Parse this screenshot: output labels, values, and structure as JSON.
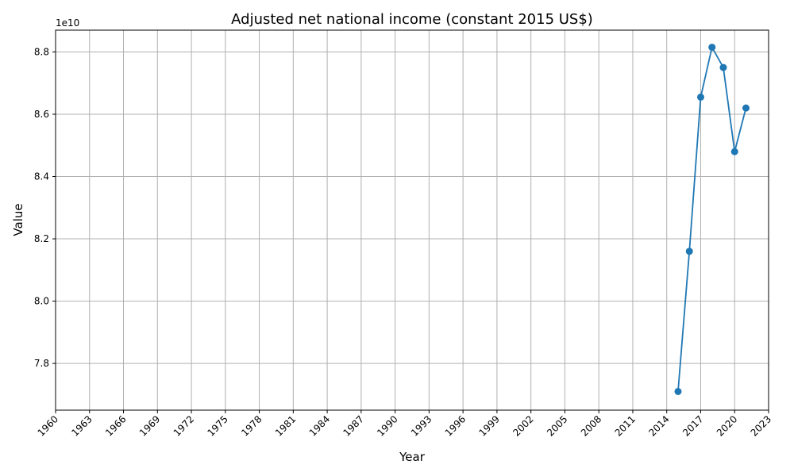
{
  "chart_data": {
    "type": "line",
    "title": "Adjusted net national income (constant 2015 US$)",
    "xlabel": "Year",
    "ylabel": "Value",
    "y_offset_text": "1e10",
    "xlim": [
      1960,
      2023
    ],
    "ylim": [
      76500000000.0,
      88700000000.0
    ],
    "x_ticks": [
      1960,
      1963,
      1966,
      1969,
      1972,
      1975,
      1978,
      1981,
      1984,
      1987,
      1990,
      1993,
      1996,
      1999,
      2002,
      2005,
      2008,
      2011,
      2014,
      2017,
      2020,
      2023
    ],
    "y_ticks": [
      78000000000.0,
      80000000000.0,
      82000000000.0,
      84000000000.0,
      86000000000.0,
      88000000000.0
    ],
    "y_tick_labels": [
      "7.8",
      "8.0",
      "8.2",
      "8.4",
      "8.6",
      "8.8"
    ],
    "grid": true,
    "series": [
      {
        "x": [
          2015,
          2016,
          2017,
          2018,
          2019,
          2020,
          2021
        ],
        "values": [
          77100000000.0,
          81600000000.0,
          86550000000.0,
          88150000000.0,
          87500000000.0,
          84800000000.0,
          86200000000.0
        ],
        "color": "#1f77b4"
      }
    ]
  }
}
